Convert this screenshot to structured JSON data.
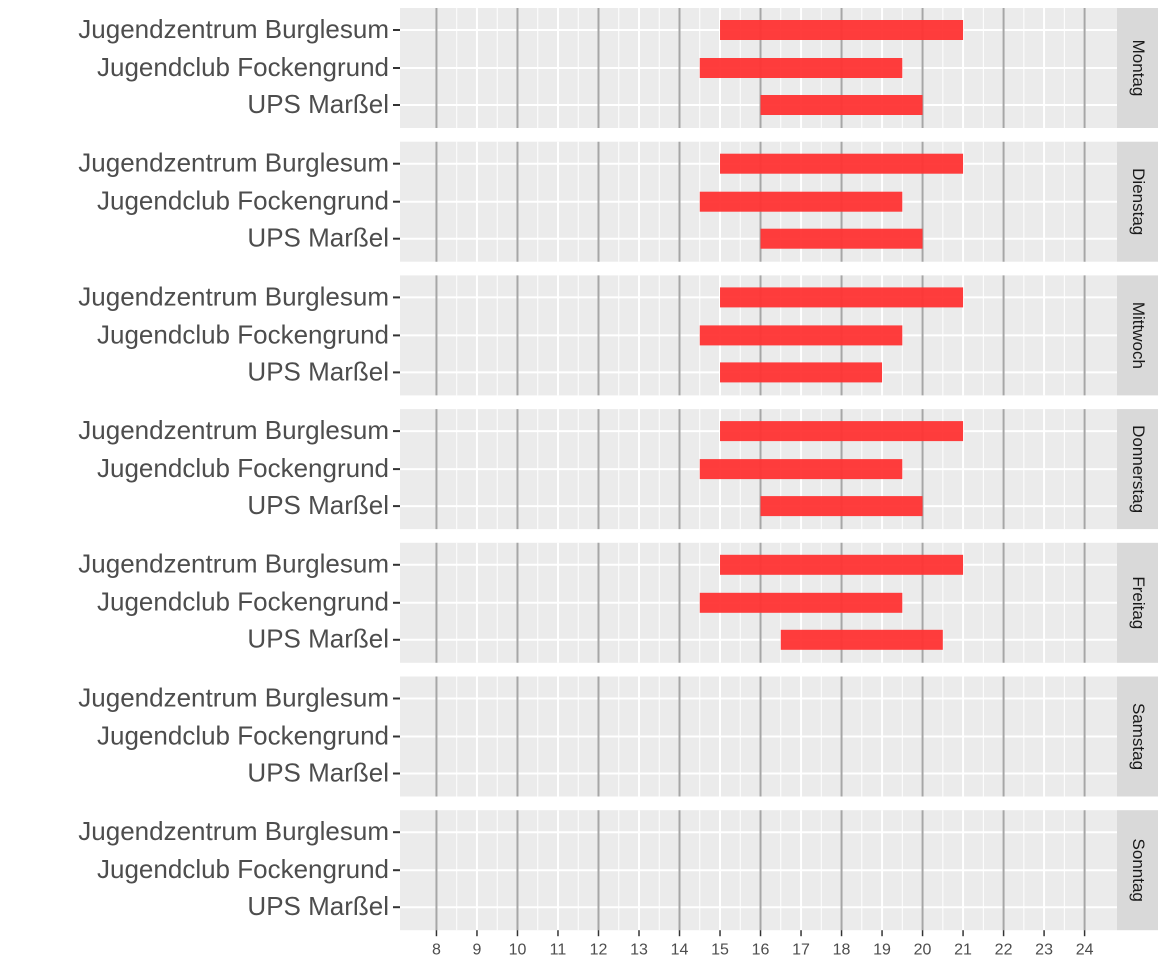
{
  "chart_data": {
    "type": "range-bar",
    "categories": [
      "Jugendzentrum Burglesum",
      "Jugendclub Fockengrund",
      "UPS Marßel"
    ],
    "facets": [
      {
        "name": "Montag",
        "start": [
          15,
          14.5,
          16
        ],
        "end": [
          21,
          19.5,
          20
        ]
      },
      {
        "name": "Dienstag",
        "start": [
          15,
          14.5,
          16
        ],
        "end": [
          21,
          19.5,
          20
        ]
      },
      {
        "name": "Mittwoch",
        "start": [
          15,
          14.5,
          15
        ],
        "end": [
          21,
          19.5,
          19
        ]
      },
      {
        "name": "Donnerstag",
        "start": [
          15,
          14.5,
          16
        ],
        "end": [
          21,
          19.5,
          20
        ]
      },
      {
        "name": "Freitag",
        "start": [
          15,
          14.5,
          16.5
        ],
        "end": [
          21,
          19.5,
          20.5
        ]
      },
      {
        "name": "Samstag",
        "start": [
          null,
          null,
          null
        ],
        "end": [
          null,
          null,
          null
        ]
      },
      {
        "name": "Sonntag",
        "start": [
          null,
          null,
          null
        ],
        "end": [
          null,
          null,
          null
        ]
      }
    ],
    "color": "#ff3333",
    "xlim": [
      7.1,
      24.8
    ],
    "xticks": [
      8,
      9,
      10,
      11,
      12,
      13,
      14,
      15,
      16,
      17,
      18,
      19,
      20,
      21,
      22,
      23,
      24
    ],
    "vlines": [
      8,
      10,
      12,
      14,
      16,
      18,
      20,
      22,
      24
    ],
    "grid": true
  }
}
